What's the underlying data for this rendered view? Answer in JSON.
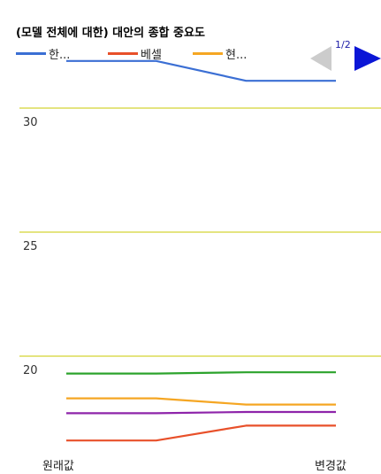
{
  "chart_data": {
    "type": "line",
    "title": "(모델 전체에 대한) 대안의 종합 중요도",
    "categories": [
      "원래값",
      "",
      "",
      "변경값"
    ],
    "x_tick_labels": [
      "원래값",
      "변경값"
    ],
    "y_ticks": [
      30,
      25,
      20
    ],
    "ylim": [
      16.5,
      33.2
    ],
    "grid": true,
    "legend": {
      "position": "top-left",
      "items": [
        {
          "label": "한...",
          "color": "#3b6fd4"
        },
        {
          "label": "베셀",
          "color": "#e8502a"
        },
        {
          "label": "현...",
          "color": "#f5a623"
        }
      ]
    },
    "series": [
      {
        "name": "한...",
        "color": "#3b6fd4",
        "values": [
          31.9,
          31.9,
          31.1,
          31.1
        ]
      },
      {
        "name": "",
        "color": "#2ca32c",
        "values": [
          19.3,
          19.3,
          19.35,
          19.35
        ]
      },
      {
        "name": "현...",
        "color": "#f5a623",
        "values": [
          18.3,
          18.3,
          18.05,
          18.05
        ]
      },
      {
        "name": "",
        "color": "#8e24aa",
        "values": [
          17.7,
          17.7,
          17.75,
          17.75
        ]
      },
      {
        "name": "베셀",
        "color": "#e8502a",
        "values": [
          16.6,
          16.6,
          17.2,
          17.2
        ]
      }
    ],
    "grid_color": "#c8c800"
  },
  "pager": {
    "label": "1/2"
  }
}
